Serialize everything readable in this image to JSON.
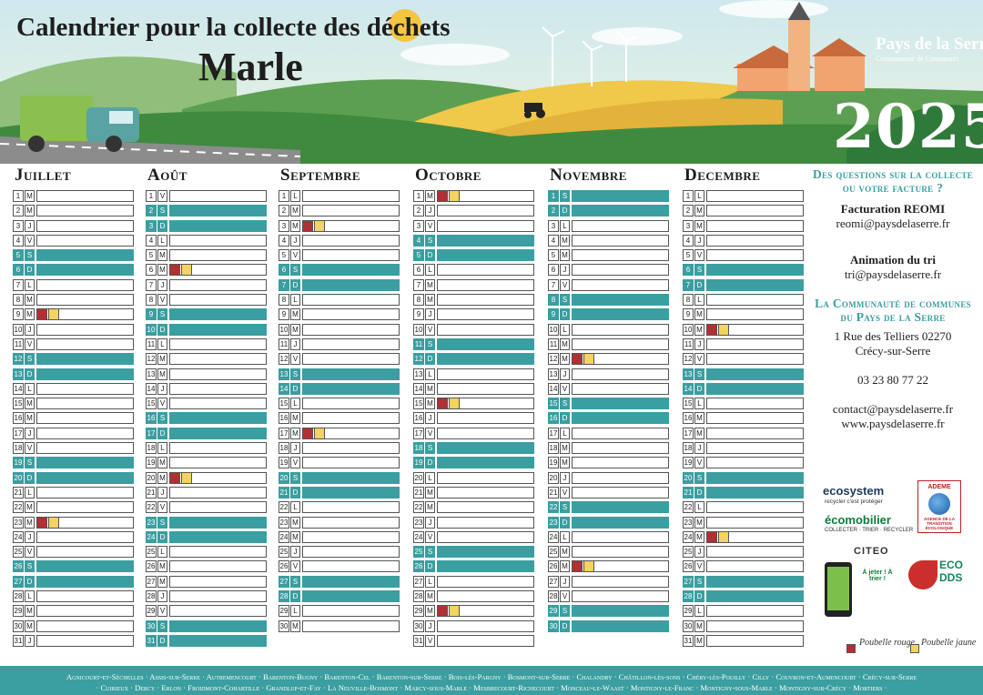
{
  "header": {
    "title": "Calendrier pour la collecte des déchets",
    "subtitle": "Marle",
    "year": "2025",
    "brand_name": "Pays de la Serre",
    "brand_sub": "Communauté de Communes"
  },
  "colors": {
    "accent": "#3b9ea0",
    "bin_red": "#b03034",
    "bin_yellow": "#f4d35e"
  },
  "months": [
    {
      "name": "Juillet",
      "days": [
        {
          "d": "1",
          "w": "M"
        },
        {
          "d": "2",
          "w": "M"
        },
        {
          "d": "3",
          "w": "J"
        },
        {
          "d": "4",
          "w": "V"
        },
        {
          "d": "5",
          "w": "S",
          "we": true
        },
        {
          "d": "6",
          "w": "D",
          "we": true
        },
        {
          "d": "7",
          "w": "L"
        },
        {
          "d": "8",
          "w": "M"
        },
        {
          "d": "9",
          "w": "M",
          "bins": true
        },
        {
          "d": "10",
          "w": "J"
        },
        {
          "d": "11",
          "w": "V"
        },
        {
          "d": "12",
          "w": "S",
          "we": true
        },
        {
          "d": "13",
          "w": "D",
          "we": true
        },
        {
          "d": "14",
          "w": "L"
        },
        {
          "d": "15",
          "w": "M"
        },
        {
          "d": "16",
          "w": "M"
        },
        {
          "d": "17",
          "w": "J"
        },
        {
          "d": "18",
          "w": "V"
        },
        {
          "d": "19",
          "w": "S",
          "we": true
        },
        {
          "d": "20",
          "w": "D",
          "we": true
        },
        {
          "d": "21",
          "w": "L"
        },
        {
          "d": "22",
          "w": "M"
        },
        {
          "d": "23",
          "w": "M",
          "bins": true
        },
        {
          "d": "24",
          "w": "J"
        },
        {
          "d": "25",
          "w": "V"
        },
        {
          "d": "26",
          "w": "S",
          "we": true
        },
        {
          "d": "27",
          "w": "D",
          "we": true
        },
        {
          "d": "28",
          "w": "L"
        },
        {
          "d": "29",
          "w": "M"
        },
        {
          "d": "30",
          "w": "M"
        },
        {
          "d": "31",
          "w": "J"
        }
      ]
    },
    {
      "name": "Août",
      "days": [
        {
          "d": "1",
          "w": "V"
        },
        {
          "d": "2",
          "w": "S",
          "we": true
        },
        {
          "d": "3",
          "w": "D",
          "we": true
        },
        {
          "d": "4",
          "w": "L"
        },
        {
          "d": "5",
          "w": "M"
        },
        {
          "d": "6",
          "w": "M",
          "bins": true
        },
        {
          "d": "7",
          "w": "J"
        },
        {
          "d": "8",
          "w": "V"
        },
        {
          "d": "9",
          "w": "S",
          "we": true
        },
        {
          "d": "10",
          "w": "D",
          "we": true
        },
        {
          "d": "11",
          "w": "L"
        },
        {
          "d": "12",
          "w": "M"
        },
        {
          "d": "13",
          "w": "M"
        },
        {
          "d": "14",
          "w": "J"
        },
        {
          "d": "15",
          "w": "V"
        },
        {
          "d": "16",
          "w": "S",
          "we": true
        },
        {
          "d": "17",
          "w": "D",
          "we": true
        },
        {
          "d": "18",
          "w": "L"
        },
        {
          "d": "19",
          "w": "M"
        },
        {
          "d": "20",
          "w": "M",
          "bins": true
        },
        {
          "d": "21",
          "w": "J"
        },
        {
          "d": "22",
          "w": "V"
        },
        {
          "d": "23",
          "w": "S",
          "we": true
        },
        {
          "d": "24",
          "w": "D",
          "we": true
        },
        {
          "d": "25",
          "w": "L"
        },
        {
          "d": "26",
          "w": "M"
        },
        {
          "d": "27",
          "w": "M"
        },
        {
          "d": "28",
          "w": "J"
        },
        {
          "d": "29",
          "w": "V"
        },
        {
          "d": "30",
          "w": "S",
          "we": true
        },
        {
          "d": "31",
          "w": "D",
          "we": true
        }
      ]
    },
    {
      "name": "Septembre",
      "days": [
        {
          "d": "1",
          "w": "L"
        },
        {
          "d": "2",
          "w": "M"
        },
        {
          "d": "3",
          "w": "M",
          "bins": true
        },
        {
          "d": "4",
          "w": "J"
        },
        {
          "d": "5",
          "w": "V"
        },
        {
          "d": "6",
          "w": "S",
          "we": true
        },
        {
          "d": "7",
          "w": "D",
          "we": true
        },
        {
          "d": "8",
          "w": "L"
        },
        {
          "d": "9",
          "w": "M"
        },
        {
          "d": "10",
          "w": "M"
        },
        {
          "d": "11",
          "w": "J"
        },
        {
          "d": "12",
          "w": "V"
        },
        {
          "d": "13",
          "w": "S",
          "we": true
        },
        {
          "d": "14",
          "w": "D",
          "we": true
        },
        {
          "d": "15",
          "w": "L"
        },
        {
          "d": "16",
          "w": "M"
        },
        {
          "d": "17",
          "w": "M",
          "bins": true
        },
        {
          "d": "18",
          "w": "J"
        },
        {
          "d": "19",
          "w": "V"
        },
        {
          "d": "20",
          "w": "S",
          "we": true
        },
        {
          "d": "21",
          "w": "D",
          "we": true
        },
        {
          "d": "22",
          "w": "L"
        },
        {
          "d": "23",
          "w": "M"
        },
        {
          "d": "24",
          "w": "M"
        },
        {
          "d": "25",
          "w": "J"
        },
        {
          "d": "26",
          "w": "V"
        },
        {
          "d": "27",
          "w": "S",
          "we": true
        },
        {
          "d": "28",
          "w": "D",
          "we": true
        },
        {
          "d": "29",
          "w": "L"
        },
        {
          "d": "30",
          "w": "M"
        }
      ]
    },
    {
      "name": "Octobre",
      "days": [
        {
          "d": "1",
          "w": "M",
          "bins": true
        },
        {
          "d": "2",
          "w": "J"
        },
        {
          "d": "3",
          "w": "V"
        },
        {
          "d": "4",
          "w": "S",
          "we": true
        },
        {
          "d": "5",
          "w": "D",
          "we": true
        },
        {
          "d": "6",
          "w": "L"
        },
        {
          "d": "7",
          "w": "M"
        },
        {
          "d": "8",
          "w": "M"
        },
        {
          "d": "9",
          "w": "J"
        },
        {
          "d": "10",
          "w": "V"
        },
        {
          "d": "11",
          "w": "S",
          "we": true
        },
        {
          "d": "12",
          "w": "D",
          "we": true
        },
        {
          "d": "13",
          "w": "L"
        },
        {
          "d": "14",
          "w": "M"
        },
        {
          "d": "15",
          "w": "M",
          "bins": true
        },
        {
          "d": "16",
          "w": "J"
        },
        {
          "d": "17",
          "w": "V"
        },
        {
          "d": "18",
          "w": "S",
          "we": true
        },
        {
          "d": "19",
          "w": "D",
          "we": true
        },
        {
          "d": "20",
          "w": "L"
        },
        {
          "d": "21",
          "w": "M"
        },
        {
          "d": "22",
          "w": "M"
        },
        {
          "d": "23",
          "w": "J"
        },
        {
          "d": "24",
          "w": "V"
        },
        {
          "d": "25",
          "w": "S",
          "we": true
        },
        {
          "d": "26",
          "w": "D",
          "we": true
        },
        {
          "d": "27",
          "w": "L"
        },
        {
          "d": "28",
          "w": "M"
        },
        {
          "d": "29",
          "w": "M",
          "bins": true
        },
        {
          "d": "30",
          "w": "J"
        },
        {
          "d": "31",
          "w": "V"
        }
      ]
    },
    {
      "name": "Novembre",
      "days": [
        {
          "d": "1",
          "w": "S",
          "we": true
        },
        {
          "d": "2",
          "w": "D",
          "we": true
        },
        {
          "d": "3",
          "w": "L"
        },
        {
          "d": "4",
          "w": "M"
        },
        {
          "d": "5",
          "w": "M"
        },
        {
          "d": "6",
          "w": "J"
        },
        {
          "d": "7",
          "w": "V"
        },
        {
          "d": "8",
          "w": "S",
          "we": true
        },
        {
          "d": "9",
          "w": "D",
          "we": true
        },
        {
          "d": "10",
          "w": "L"
        },
        {
          "d": "11",
          "w": "M"
        },
        {
          "d": "12",
          "w": "M",
          "bins": true
        },
        {
          "d": "13",
          "w": "J"
        },
        {
          "d": "14",
          "w": "V"
        },
        {
          "d": "15",
          "w": "S",
          "we": true
        },
        {
          "d": "16",
          "w": "D",
          "we": true
        },
        {
          "d": "17",
          "w": "L"
        },
        {
          "d": "18",
          "w": "M"
        },
        {
          "d": "19",
          "w": "M"
        },
        {
          "d": "20",
          "w": "J"
        },
        {
          "d": "21",
          "w": "V"
        },
        {
          "d": "22",
          "w": "S",
          "we": true
        },
        {
          "d": "23",
          "w": "D",
          "we": true
        },
        {
          "d": "24",
          "w": "L"
        },
        {
          "d": "25",
          "w": "M"
        },
        {
          "d": "26",
          "w": "M",
          "bins": true
        },
        {
          "d": "27",
          "w": "J"
        },
        {
          "d": "28",
          "w": "V"
        },
        {
          "d": "29",
          "w": "S",
          "we": true
        },
        {
          "d": "30",
          "w": "D",
          "we": true
        }
      ]
    },
    {
      "name": "Decembre",
      "days": [
        {
          "d": "1",
          "w": "L"
        },
        {
          "d": "2",
          "w": "M"
        },
        {
          "d": "3",
          "w": "M"
        },
        {
          "d": "4",
          "w": "J"
        },
        {
          "d": "5",
          "w": "V"
        },
        {
          "d": "6",
          "w": "S",
          "we": true
        },
        {
          "d": "7",
          "w": "D",
          "we": true
        },
        {
          "d": "8",
          "w": "L"
        },
        {
          "d": "9",
          "w": "M"
        },
        {
          "d": "10",
          "w": "M",
          "bins": true
        },
        {
          "d": "11",
          "w": "J"
        },
        {
          "d": "12",
          "w": "V"
        },
        {
          "d": "13",
          "w": "S",
          "we": true
        },
        {
          "d": "14",
          "w": "D",
          "we": true
        },
        {
          "d": "15",
          "w": "L"
        },
        {
          "d": "16",
          "w": "M"
        },
        {
          "d": "17",
          "w": "M"
        },
        {
          "d": "18",
          "w": "J"
        },
        {
          "d": "19",
          "w": "V"
        },
        {
          "d": "20",
          "w": "S",
          "we": true
        },
        {
          "d": "21",
          "w": "D",
          "we": true
        },
        {
          "d": "22",
          "w": "L"
        },
        {
          "d": "23",
          "w": "M"
        },
        {
          "d": "24",
          "w": "M",
          "bins": true
        },
        {
          "d": "25",
          "w": "J"
        },
        {
          "d": "26",
          "w": "V"
        },
        {
          "d": "27",
          "w": "S",
          "we": true
        },
        {
          "d": "28",
          "w": "D",
          "we": true
        },
        {
          "d": "29",
          "w": "L"
        },
        {
          "d": "30",
          "w": "M"
        },
        {
          "d": "31",
          "w": "M"
        }
      ]
    }
  ],
  "info": {
    "heading": "Des questions sur la collecte ou votre facture ?",
    "billing_label": "Facturation REOMI",
    "billing_email": "reomi@paysdelaserre.fr",
    "sorting_label": "Animation du tri",
    "sorting_email": "tri@paysdelaserre.fr",
    "community_heading": "La Communauté de communes du Pays de la Serre",
    "address_line1": "1 Rue des Telliers 02270",
    "address_line2": "Crécy-sur-Serre",
    "phone": "03 23 80 77 22",
    "email": "contact@paysdelaserre.fr",
    "website": "www.paysdelaserre.fr"
  },
  "partners": {
    "ecosystem": "ecosystem",
    "ecosystem_tag": "recycler c'est protéger",
    "ademe": "ADEME",
    "ademe_sub": "AGENCE DE LA TRANSITION ÉCOLOGIQUE",
    "ecomobilier": "écomobilier",
    "ecomobilier_tag": "COLLECTER · TRIER · RECYCLER",
    "citeo": "CITEO",
    "jeter": "À jeter ! À trier !",
    "ecodds": "ECO DDS"
  },
  "legend": {
    "red": "Poubelle rouge",
    "yellow": "Poubelle jaune"
  },
  "footer": {
    "line1": "Agnicourt-et-Séchelles · Assis-sur-Serre · Autremencourt · Barenton-Bugny · Barenton-Cel · Barenton-sur-Serre · Bois-lès-Pargny · Bosmont-sur-Serre · Chalandry · Châtillon-lès-sons · Chéry-lès-Pouilly · Cilly · Couvron-et-Aumencourt · Crécy-sur-Serre",
    "line2": "· Cuirieux · Dercy · Erlon · Froidmont-Cohartille · Grandlup-et-Fay · La Neuville-Bosmont · Marcy-sous-Marle · Mesbrecourt-Richecourt · Monceau-le-Waast · Montigny-le-Franc · Montigny-sous-Marle · Montigny-sur-Crécy · Mortiers ·"
  }
}
